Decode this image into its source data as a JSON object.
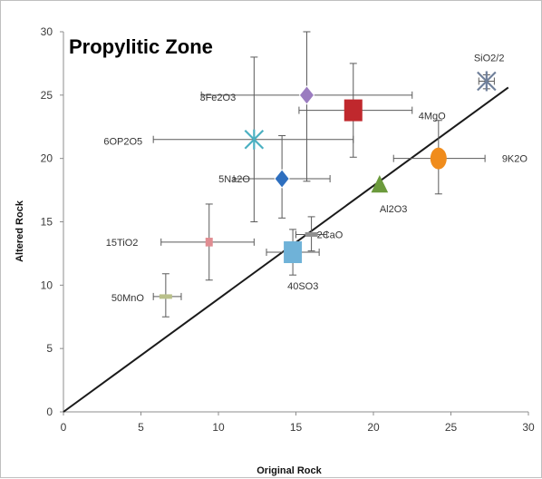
{
  "chart_data": {
    "type": "scatter",
    "title": "Propylitic Zone",
    "xlabel": "Original Rock",
    "ylabel": "Altered Rock",
    "xlim": [
      0,
      30
    ],
    "ylim": [
      0,
      30
    ],
    "x_ticks": [
      "0",
      "5",
      "10",
      "15",
      "20",
      "25",
      "30"
    ],
    "y_ticks": [
      "0",
      "5",
      "10",
      "15",
      "20",
      "25",
      "30"
    ],
    "grid": false,
    "legend": "none",
    "isocon_line": {
      "from": [
        0,
        0
      ],
      "to": [
        28.7,
        25.6
      ],
      "color": "#1a1a1a"
    },
    "points": [
      {
        "label": "SiO2/2",
        "x": 27.3,
        "y": 26.1,
        "marker": "x-star",
        "color": "#6f7f9a",
        "x_err": [
          26.8,
          27.8
        ],
        "y_err": [
          25.5,
          26.6
        ]
      },
      {
        "label": "3Fe2O3",
        "x": 15.7,
        "y": 25.0,
        "marker": "diamond",
        "color": "#9b7cc0",
        "x_err": [
          8.9,
          22.5
        ],
        "y_err": [
          18.2,
          30.0
        ]
      },
      {
        "label": "4MgO",
        "x": 18.7,
        "y": 23.8,
        "marker": "square",
        "color": "#c0282d",
        "x_err": [
          15.2,
          22.5
        ],
        "y_err": [
          20.1,
          27.5
        ]
      },
      {
        "label": "6OP2O5",
        "x": 12.3,
        "y": 21.5,
        "marker": "x-star",
        "color": "#4ab0c1",
        "x_err": [
          5.8,
          18.7
        ],
        "y_err": [
          15.0,
          28.0
        ]
      },
      {
        "label": "9K2O",
        "x": 24.2,
        "y": 20.0,
        "marker": "circle",
        "color": "#f08c1c",
        "x_err": [
          21.3,
          27.2
        ],
        "y_err": [
          17.2,
          23.0
        ]
      },
      {
        "label": "5Na2O",
        "x": 14.1,
        "y": 18.4,
        "marker": "diamond",
        "color": "#2e6fbf",
        "x_err": [
          11.0,
          17.2
        ],
        "y_err": [
          15.3,
          21.8
        ]
      },
      {
        "label": "Al2O3",
        "x": 20.4,
        "y": 17.9,
        "marker": "triangle",
        "color": "#6b9a3c",
        "x_err": [
          20.4,
          20.4
        ],
        "y_err": [
          17.9,
          17.9
        ]
      },
      {
        "label": "15TiO2",
        "x": 9.4,
        "y": 13.4,
        "marker": "square",
        "color": "#e08d92",
        "x_err": [
          6.3,
          12.3
        ],
        "y_err": [
          10.4,
          16.4
        ]
      },
      {
        "label": "2CaO",
        "x": 16.0,
        "y": 14.0,
        "marker": "dash",
        "color": "#909090",
        "x_err": [
          15.0,
          17.0
        ],
        "y_err": [
          12.7,
          15.4
        ]
      },
      {
        "label": "40SO3",
        "x": 14.8,
        "y": 12.6,
        "marker": "square",
        "color": "#6fb2d8",
        "x_err": [
          13.1,
          16.5
        ],
        "y_err": [
          10.8,
          14.4
        ]
      },
      {
        "label": "50MnO",
        "x": 6.6,
        "y": 9.1,
        "marker": "dash",
        "color": "#b9c08a",
        "x_err": [
          5.8,
          7.6
        ],
        "y_err": [
          7.5,
          10.9
        ]
      }
    ]
  }
}
